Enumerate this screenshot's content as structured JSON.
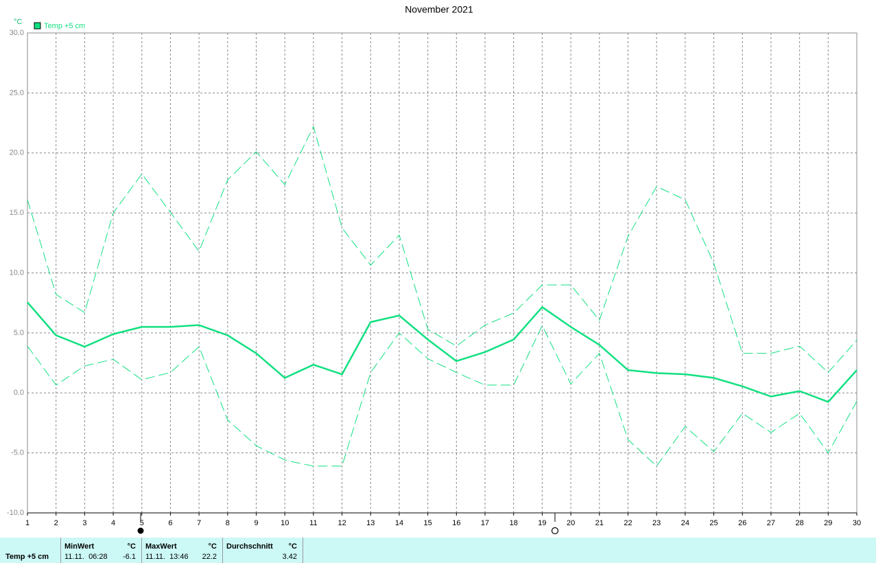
{
  "chart_data": {
    "type": "line",
    "title": "November 2021",
    "y_label": "°C",
    "x": [
      1,
      2,
      3,
      4,
      5,
      6,
      7,
      8,
      9,
      10,
      11,
      12,
      13,
      14,
      15,
      16,
      17,
      18,
      19,
      20,
      21,
      22,
      23,
      24,
      25,
      26,
      27,
      28,
      29,
      30
    ],
    "xlim": [
      1,
      30
    ],
    "xticks": [
      1,
      2,
      3,
      4,
      5,
      6,
      7,
      8,
      9,
      10,
      11,
      12,
      13,
      14,
      15,
      16,
      17,
      18,
      19,
      20,
      21,
      22,
      23,
      24,
      25,
      26,
      27,
      28,
      29,
      30
    ],
    "ylim": [
      -10,
      30
    ],
    "yticks": [
      {
        "value": -10,
        "label": "-10.0"
      },
      {
        "value": -5,
        "label": "-5.0"
      },
      {
        "value": 0,
        "label": "0.0"
      },
      {
        "value": 5,
        "label": "5.0"
      },
      {
        "value": 10,
        "label": "10.0"
      },
      {
        "value": 15,
        "label": "15.0"
      },
      {
        "value": 20,
        "label": "20.0"
      },
      {
        "value": 25,
        "label": "25.0"
      },
      {
        "value": 30,
        "label": "30.0"
      }
    ],
    "grid": true,
    "series": [
      {
        "name": "Temp +5 cm",
        "color": "#10e080",
        "style": "solid",
        "values": [
          7.55,
          4.8,
          3.85,
          4.9,
          5.5,
          5.5,
          5.65,
          4.8,
          3.3,
          1.25,
          2.35,
          1.55,
          5.9,
          6.45,
          4.45,
          2.65,
          3.4,
          4.45,
          7.15,
          5.5,
          4.0,
          1.9,
          1.65,
          1.55,
          1.25,
          0.55,
          -0.3,
          0.15,
          -0.75,
          1.9
        ]
      },
      {
        "color": "#10e080",
        "style": "dashed",
        "values": [
          16.1,
          8.2,
          6.7,
          15.0,
          18.25,
          15.05,
          11.8,
          17.75,
          20.1,
          17.35,
          22.2,
          13.75,
          10.65,
          13.15,
          5.3,
          3.9,
          5.65,
          6.65,
          9.0,
          9.0,
          6.05,
          13.05,
          17.2,
          16.1,
          10.8,
          3.3,
          3.3,
          3.9,
          1.7,
          4.4
        ]
      },
      {
        "color": "#10e080",
        "style": "dashed",
        "values": [
          3.9,
          0.65,
          2.25,
          2.8,
          1.1,
          1.7,
          3.85,
          -2.25,
          -4.4,
          -5.6,
          -6.1,
          -6.1,
          1.7,
          5.0,
          2.85,
          1.7,
          0.65,
          0.65,
          5.6,
          0.75,
          3.3,
          -3.9,
          -6.1,
          -2.8,
          -4.9,
          -1.7,
          -3.3,
          -1.7,
          -5.0,
          -0.7
        ]
      }
    ]
  },
  "summary": {
    "label": "Temp +5 cm",
    "columns": [
      {
        "header": "MinWert",
        "unit": "°C",
        "time": "11.11.  06:28",
        "value": -6.1
      },
      {
        "header": "MaxWert",
        "unit": "°C",
        "time": "11.11.  13:46",
        "value": 22.2
      },
      {
        "header": "Durchschnitt",
        "unit": "°C",
        "value": 3.42
      }
    ]
  }
}
